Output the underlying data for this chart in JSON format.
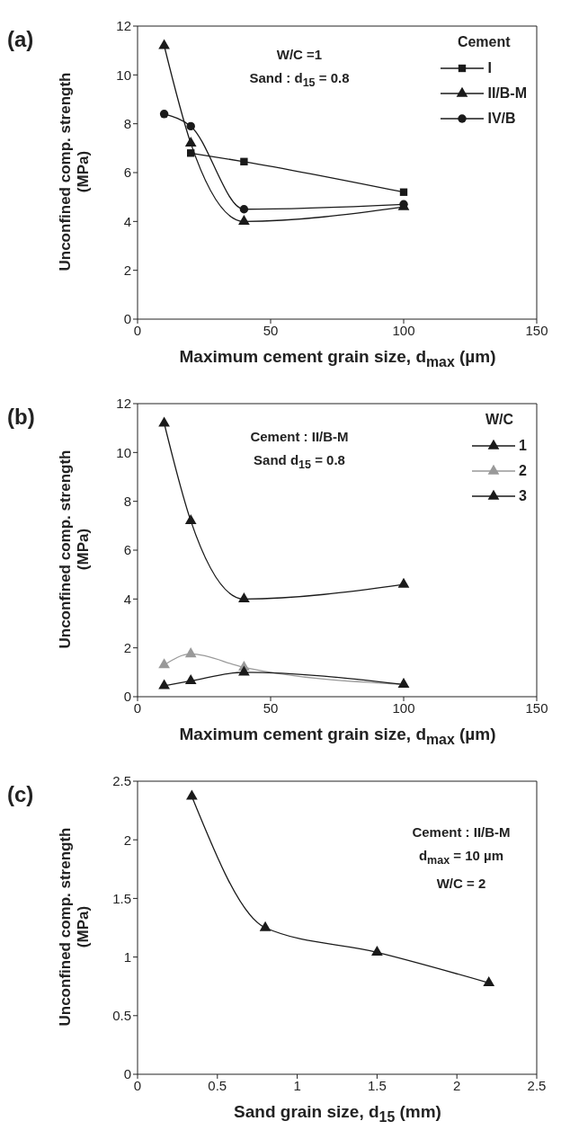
{
  "chart_data": [
    {
      "type": "line",
      "title": "(a)",
      "xlabel": "Maximum cement grain size, d$_{max}$ (µm)",
      "ylabel": "Unconfined comp. strength (MPa)",
      "legend_title": "Cement",
      "annotations": [
        "W/C =1",
        "Sand : d$_{15}$ = 0.8"
      ],
      "xlim": [
        0,
        150
      ],
      "xticks": [
        0,
        50,
        100,
        150
      ],
      "ylim": [
        0,
        12
      ],
      "yticks": [
        0,
        2,
        4,
        6,
        8,
        10,
        12
      ],
      "grid": false,
      "legend": "top right",
      "line_style": "solid",
      "series": [
        {
          "name": "I",
          "color": "#1a1a1a",
          "marker": "square",
          "x": [
            20,
            40,
            100
          ],
          "values": [
            6.8,
            6.45,
            5.2
          ]
        },
        {
          "name": "II/B-M",
          "color": "#1a1a1a",
          "marker": "triangle",
          "x": [
            10,
            20,
            40,
            100
          ],
          "values": [
            11.2,
            7.2,
            4.0,
            4.6
          ]
        },
        {
          "name": "IV/B",
          "color": "#1a1a1a",
          "marker": "circle",
          "x": [
            10,
            20,
            40,
            100
          ],
          "values": [
            8.4,
            7.9,
            4.5,
            4.7
          ]
        }
      ]
    },
    {
      "type": "line",
      "title": "(b)",
      "xlabel": "Maximum cement grain size, d$_{max}$ (µm)",
      "ylabel": "Unconfined comp. strength (MPa)",
      "legend_title": "W/C",
      "annotations": [
        "Cement : II/B-M",
        "Sand  d$_{15}$ = 0.8"
      ],
      "xlim": [
        0,
        150
      ],
      "xticks": [
        0,
        50,
        100,
        150
      ],
      "ylim": [
        0,
        12
      ],
      "yticks": [
        0,
        2,
        4,
        6,
        8,
        10,
        12
      ],
      "grid": false,
      "legend": "top right",
      "line_style": "solid",
      "marker": "triangle",
      "series": [
        {
          "name": "1",
          "color": "#1a1a1a",
          "x": [
            10,
            20,
            40,
            100
          ],
          "values": [
            11.2,
            7.2,
            4.0,
            4.6
          ]
        },
        {
          "name": "2",
          "color": "#999999",
          "x": [
            10,
            20,
            40,
            100
          ],
          "values": [
            1.3,
            1.75,
            1.2,
            0.5
          ]
        },
        {
          "name": "3",
          "color": "#1a1a1a",
          "x": [
            10,
            20,
            40,
            100
          ],
          "values": [
            0.45,
            0.65,
            1.0,
            0.5
          ]
        }
      ]
    },
    {
      "type": "line",
      "title": "(c)",
      "xlabel": "Sand grain size, d$_{15}$ (mm)",
      "ylabel": "Unconfined comp. strength (MPa)",
      "annotations": [
        "Cement : II/B-M",
        "d$_{max}$ = 10 µm",
        "W/C = 2"
      ],
      "xlim": [
        0,
        2.5
      ],
      "xticks": [
        0,
        0.5,
        1,
        1.5,
        2,
        2.5
      ],
      "ylim": [
        0,
        2.5
      ],
      "yticks": [
        0,
        0.5,
        1,
        1.5,
        2,
        2.5
      ],
      "grid": false,
      "legend": false,
      "line_style": "solid",
      "marker": "triangle",
      "series": [
        {
          "color": "#1a1a1a",
          "x": [
            0.34,
            0.8,
            1.5,
            2.2
          ],
          "values": [
            2.37,
            1.25,
            1.04,
            0.78
          ]
        }
      ]
    }
  ]
}
